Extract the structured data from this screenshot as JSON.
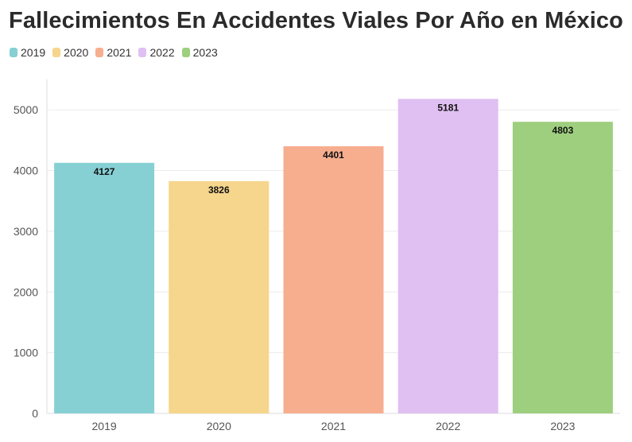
{
  "chart_data": {
    "type": "bar",
    "title": "Fallecimientos En Accidentes Viales Por Año en México",
    "xlabel": "",
    "ylabel": "",
    "categories": [
      "2019",
      "2020",
      "2021",
      "2022",
      "2023"
    ],
    "values": [
      4127,
      3826,
      4401,
      5181,
      4803
    ],
    "colors": [
      "#86d0d4",
      "#f6d58c",
      "#f7ae8f",
      "#e0bff2",
      "#9ecf7e"
    ],
    "ylim": [
      0,
      5500
    ],
    "yticks": [
      0,
      1000,
      2000,
      3000,
      4000,
      5000
    ],
    "grid": true,
    "legend_position": "top-left",
    "legend": [
      "2019",
      "2020",
      "2021",
      "2022",
      "2023"
    ],
    "data_labels": [
      "4127",
      "3826",
      "4401",
      "5181",
      "4803"
    ]
  }
}
